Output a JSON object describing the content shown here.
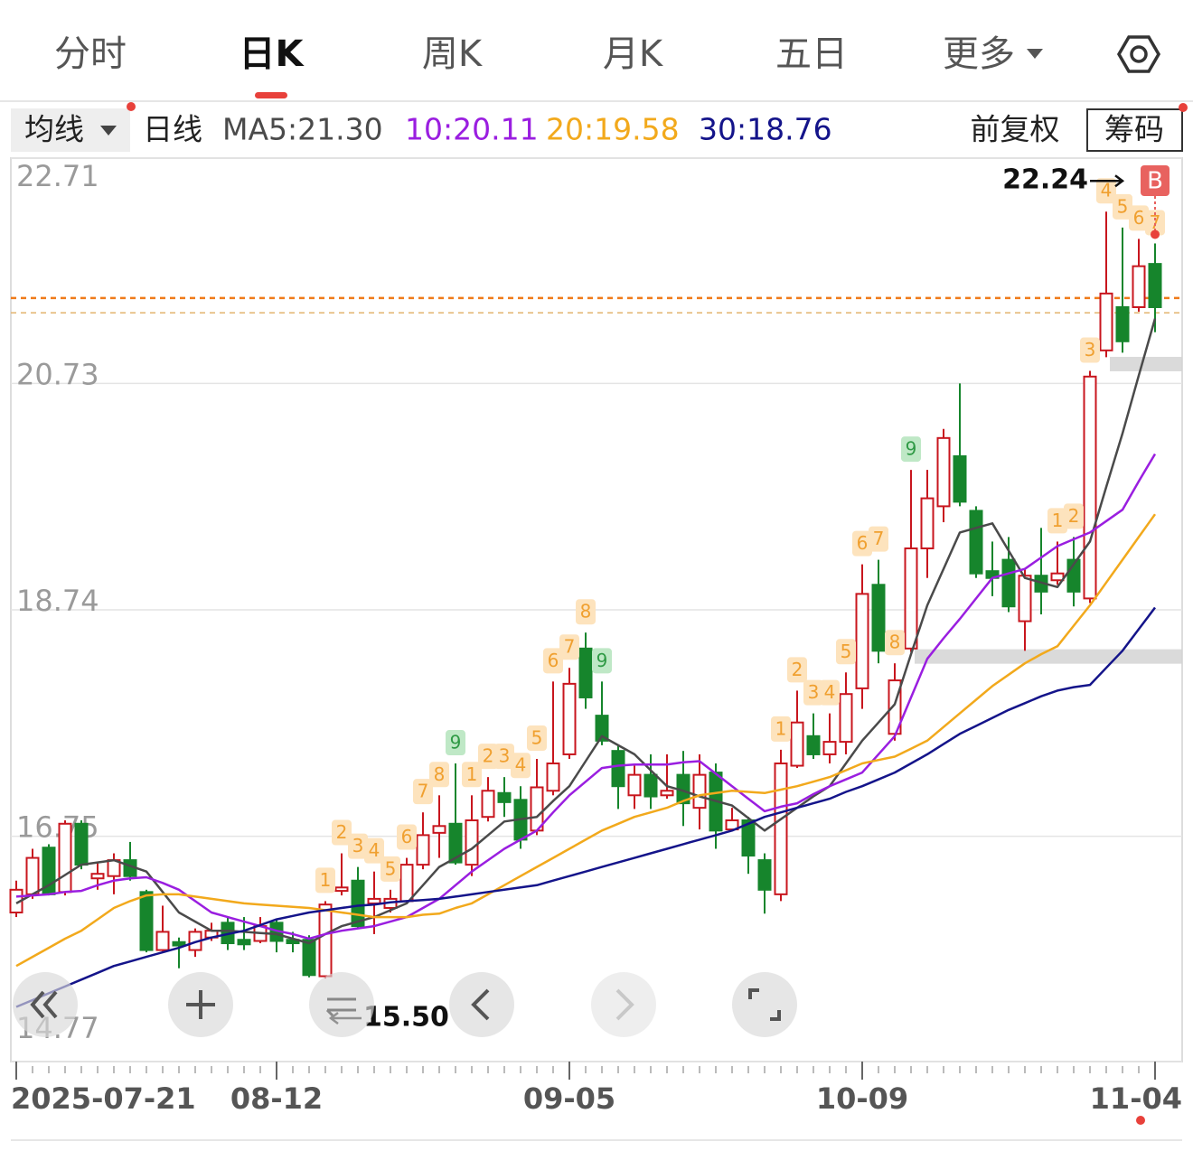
{
  "tabs": [
    "分时",
    "日K",
    "周K",
    "月K",
    "五日",
    "更多"
  ],
  "active_tab": 1,
  "toolbar": {
    "ma_button": "均线",
    "period": "日线",
    "adjust": "前复权",
    "chips": "筹码"
  },
  "chart_data": {
    "type": "candlestick",
    "categories": [
      "2025-07-21",
      null,
      null,
      null,
      null,
      null,
      null,
      null,
      null,
      null,
      null,
      null,
      null,
      null,
      null,
      null,
      "08-12",
      null,
      null,
      null,
      null,
      null,
      null,
      null,
      null,
      null,
      null,
      null,
      null,
      null,
      null,
      null,
      null,
      null,
      "09-05",
      null,
      null,
      null,
      null,
      null,
      null,
      null,
      null,
      null,
      null,
      null,
      null,
      null,
      null,
      null,
      null,
      null,
      "10-09",
      null,
      null,
      null,
      null,
      null,
      null,
      null,
      null,
      null,
      null,
      null,
      null,
      null,
      null,
      null,
      null,
      null,
      "11-04"
    ],
    "candles": {
      "open": [
        16.08,
        16.24,
        16.65,
        16.26,
        16.86,
        16.38,
        16.4,
        16.54,
        16.26,
        15.75,
        15.82,
        15.75,
        15.86,
        15.99,
        15.84,
        15.83,
        15.99,
        15.84,
        15.84,
        15.52,
        16.27,
        16.36,
        16.16,
        16.12,
        16.18,
        16.5,
        16.78,
        16.86,
        16.5,
        16.92,
        17.13,
        17.07,
        16.8,
        17.15,
        17.47,
        18.4,
        17.81,
        17.5,
        17.11,
        17.29,
        17.11,
        17.29,
        17.0,
        17.31,
        16.81,
        16.89,
        16.54,
        16.24,
        17.37,
        17.63,
        17.47,
        17.58,
        18.05,
        18.96,
        17.65,
        18.4,
        19.28,
        19.65,
        20.09,
        19.61,
        19.08,
        19.18,
        18.64,
        19.04,
        19.0,
        19.18,
        18.84,
        21.02,
        21.4,
        21.4,
        21.78
      ],
      "high": [
        16.36,
        16.64,
        16.68,
        16.89,
        16.89,
        16.52,
        16.6,
        16.7,
        16.28,
        16.14,
        15.86,
        15.94,
        15.99,
        16.04,
        16.04,
        16.04,
        16.02,
        15.91,
        15.88,
        16.18,
        16.6,
        16.48,
        16.44,
        16.28,
        16.56,
        16.96,
        17.11,
        17.39,
        17.11,
        17.27,
        17.27,
        17.19,
        17.43,
        18.11,
        18.23,
        18.54,
        18.11,
        17.55,
        17.37,
        17.47,
        17.47,
        17.5,
        17.47,
        17.39,
        17.0,
        16.92,
        16.6,
        17.51,
        18.03,
        17.83,
        17.83,
        18.19,
        19.14,
        19.18,
        18.27,
        19.97,
        19.97,
        20.33,
        20.73,
        19.65,
        19.34,
        19.38,
        19.1,
        19.46,
        19.34,
        19.38,
        20.84,
        22.24,
        22.1,
        22.0,
        21.96
      ],
      "low": [
        16.04,
        16.2,
        16.23,
        16.23,
        16.46,
        16.28,
        16.24,
        16.36,
        15.73,
        15.74,
        15.59,
        15.69,
        15.83,
        15.75,
        15.75,
        15.81,
        15.73,
        15.73,
        15.51,
        15.5,
        16.23,
        15.94,
        15.89,
        16.08,
        16.16,
        16.46,
        16.56,
        16.5,
        16.4,
        16.88,
        16.92,
        16.64,
        16.76,
        17.11,
        17.43,
        17.87,
        17.55,
        16.99,
        16.99,
        16.99,
        17.08,
        16.84,
        16.81,
        16.64,
        16.8,
        16.42,
        16.07,
        16.18,
        17.35,
        17.43,
        17.39,
        17.47,
        17.87,
        18.27,
        17.59,
        18.37,
        19.02,
        19.51,
        19.65,
        19.02,
        18.86,
        18.72,
        18.38,
        18.7,
        18.96,
        18.77,
        18.8,
        20.96,
        21.0,
        21.36,
        21.18
      ],
      "close": [
        16.28,
        16.56,
        16.24,
        16.86,
        16.5,
        16.42,
        16.54,
        16.4,
        15.75,
        15.91,
        15.79,
        15.91,
        15.92,
        15.81,
        15.8,
        15.96,
        15.83,
        15.81,
        15.53,
        16.15,
        16.3,
        15.96,
        16.2,
        16.2,
        16.5,
        16.76,
        16.84,
        16.52,
        16.89,
        17.15,
        17.05,
        16.72,
        17.18,
        17.39,
        18.09,
        17.97,
        17.59,
        17.19,
        17.29,
        17.1,
        17.15,
        17.04,
        17.29,
        16.8,
        16.89,
        16.58,
        16.28,
        17.39,
        17.75,
        17.47,
        17.58,
        18.0,
        18.88,
        18.38,
        18.12,
        19.28,
        19.72,
        20.25,
        19.69,
        19.06,
        19.02,
        18.77,
        19.04,
        18.9,
        19.06,
        18.9,
        20.79,
        21.52,
        21.1,
        21.76,
        21.4
      ]
    },
    "up_color": "#c8161e",
    "down_color": "#16852c",
    "series": [
      {
        "name": "MA5:21.30",
        "color": "#4a4a4a",
        "values": [
          16.16,
          16.24,
          16.32,
          16.41,
          16.5,
          16.52,
          16.54,
          16.49,
          16.44,
          16.26,
          16.08,
          16.0,
          15.92,
          15.92,
          15.91,
          15.9,
          15.89,
          15.85,
          15.81,
          15.89,
          15.96,
          16.0,
          16.04,
          16.1,
          16.16,
          16.32,
          16.48,
          16.56,
          16.64,
          16.76,
          16.88,
          16.9,
          16.92,
          17.06,
          17.19,
          17.41,
          17.63,
          17.55,
          17.47,
          17.33,
          17.19,
          17.15,
          17.1,
          17.06,
          17.02,
          16.91,
          16.8,
          16.9,
          17.0,
          17.1,
          17.19,
          17.39,
          17.59,
          17.75,
          17.91,
          18.35,
          18.78,
          19.1,
          19.42,
          19.46,
          19.5,
          19.26,
          19.02,
          18.98,
          18.94,
          19.14,
          19.34,
          19.82,
          20.29,
          20.8,
          21.3
        ]
      },
      {
        "name": "10:20.11",
        "color": "#9a1ee0",
        "values": [
          16.22,
          16.23,
          16.24,
          16.26,
          16.27,
          16.32,
          16.36,
          16.38,
          16.39,
          16.34,
          16.28,
          16.18,
          16.08,
          16.04,
          16.0,
          15.96,
          15.92,
          15.89,
          15.85,
          15.89,
          15.92,
          15.94,
          15.96,
          16.0,
          16.04,
          16.12,
          16.2,
          16.32,
          16.44,
          16.54,
          16.64,
          16.72,
          16.8,
          16.96,
          17.11,
          17.23,
          17.35,
          17.37,
          17.38,
          17.38,
          17.38,
          17.4,
          17.41,
          17.3,
          17.19,
          17.08,
          16.97,
          17.01,
          17.04,
          17.12,
          17.19,
          17.25,
          17.31,
          17.47,
          17.63,
          17.97,
          18.31,
          18.49,
          18.66,
          18.84,
          19.02,
          19.06,
          19.1,
          19.2,
          19.3,
          19.36,
          19.42,
          19.52,
          19.62,
          19.87,
          20.11
        ]
      },
      {
        "name": "20:19.58",
        "color": "#f2a91c",
        "values": [
          15.61,
          15.69,
          15.77,
          15.85,
          15.92,
          16.02,
          16.12,
          16.18,
          16.23,
          16.24,
          16.24,
          16.22,
          16.2,
          16.18,
          16.16,
          16.15,
          16.14,
          16.13,
          16.12,
          16.1,
          16.08,
          16.06,
          16.04,
          16.04,
          16.04,
          16.06,
          16.07,
          16.12,
          16.16,
          16.24,
          16.32,
          16.4,
          16.48,
          16.56,
          16.64,
          16.72,
          16.8,
          16.86,
          16.92,
          16.96,
          17.0,
          17.06,
          17.11,
          17.13,
          17.15,
          17.14,
          17.13,
          17.16,
          17.19,
          17.23,
          17.27,
          17.33,
          17.39,
          17.42,
          17.45,
          17.52,
          17.59,
          17.71,
          17.83,
          17.95,
          18.07,
          18.17,
          18.27,
          18.35,
          18.42,
          18.6,
          18.78,
          18.98,
          19.18,
          19.38,
          19.58
        ]
      },
      {
        "name": "30:18.76",
        "color": "#14148a",
        "values": [
          15.25,
          15.31,
          15.37,
          15.43,
          15.49,
          15.55,
          15.61,
          15.65,
          15.69,
          15.73,
          15.77,
          15.82,
          15.86,
          15.89,
          15.92,
          15.97,
          16.02,
          16.05,
          16.08,
          16.1,
          16.12,
          16.14,
          16.15,
          16.17,
          16.18,
          16.19,
          16.2,
          16.22,
          16.24,
          16.26,
          16.28,
          16.3,
          16.32,
          16.36,
          16.4,
          16.44,
          16.48,
          16.52,
          16.56,
          16.6,
          16.64,
          16.68,
          16.72,
          16.76,
          16.8,
          16.86,
          16.92,
          16.96,
          17.0,
          17.04,
          17.08,
          17.14,
          17.19,
          17.25,
          17.31,
          17.39,
          17.47,
          17.56,
          17.65,
          17.72,
          17.79,
          17.86,
          17.92,
          17.98,
          18.03,
          18.06,
          18.08,
          18.23,
          18.38,
          18.57,
          18.76
        ]
      }
    ],
    "ylim": [
      14.77,
      22.71
    ],
    "yticks": [
      22.71,
      20.73,
      18.74,
      16.75,
      14.77
    ],
    "grid": true,
    "td_counts": [
      null,
      null,
      null,
      null,
      null,
      null,
      null,
      null,
      null,
      null,
      null,
      null,
      null,
      null,
      null,
      null,
      null,
      null,
      null,
      1,
      2,
      3,
      4,
      5,
      6,
      7,
      8,
      9,
      1,
      2,
      3,
      4,
      5,
      6,
      7,
      8,
      9,
      null,
      null,
      null,
      null,
      null,
      null,
      null,
      null,
      null,
      null,
      1,
      2,
      3,
      4,
      5,
      6,
      7,
      8,
      9,
      null,
      null,
      null,
      null,
      null,
      null,
      null,
      null,
      1,
      2,
      3,
      4,
      5,
      6,
      7
    ],
    "td_colors": {
      "count": "#f0a030",
      "count_bg": "#fde3bd",
      "final": "#2f9a45",
      "final_bg": "#bfe8c6"
    },
    "low_label": "15.50",
    "buy_signal": "B",
    "reference_lines": [
      {
        "value": 21.48,
        "color": "#f07b1a"
      },
      {
        "value": 21.35,
        "color": "#e3b36e"
      }
    ],
    "levels": [
      {
        "value": 20.9,
        "from": 67
      },
      {
        "value": 18.33,
        "from": 55
      }
    ]
  }
}
